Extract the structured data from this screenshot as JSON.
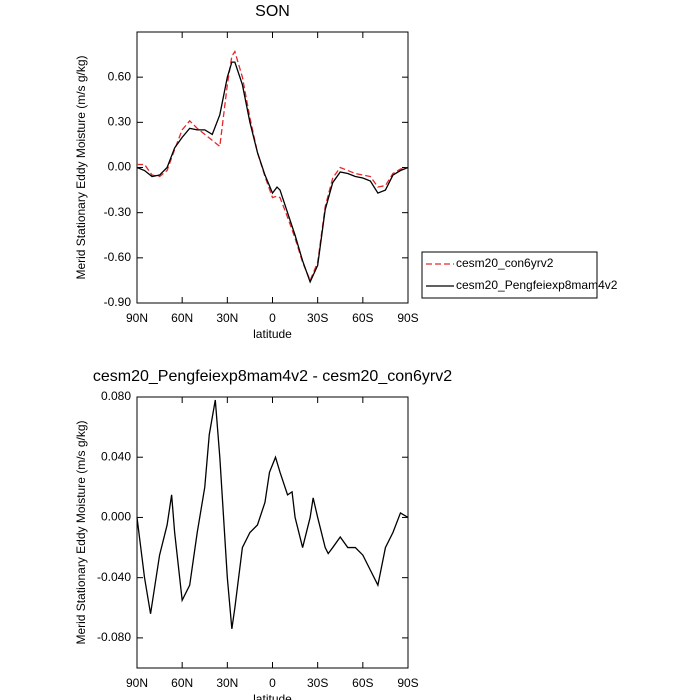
{
  "chart_data": [
    {
      "type": "line",
      "title": "SON",
      "x_label": "latitude",
      "y_label": "Merid Stationary Eddy Moisture (m/s g/kg)",
      "x": [
        90,
        85,
        80,
        75,
        70,
        65,
        60,
        55,
        50,
        45,
        40,
        35,
        30,
        27,
        25,
        20,
        15,
        10,
        5,
        0,
        -3,
        -5,
        -10,
        -15,
        -20,
        -25,
        -30,
        -35,
        -40,
        -45,
        -50,
        -55,
        -60,
        -65,
        -70,
        -75,
        -80,
        -85,
        -90
      ],
      "series": [
        {
          "name": "cesm20_con6yrv2",
          "color": "#e8262b",
          "line_style": "dashed",
          "values": [
            0.02,
            0.02,
            -0.05,
            -0.06,
            -0.02,
            0.12,
            0.25,
            0.31,
            0.26,
            0.22,
            0.18,
            0.14,
            0.55,
            0.74,
            0.77,
            0.6,
            0.33,
            0.1,
            -0.06,
            -0.2,
            -0.19,
            -0.2,
            -0.33,
            -0.47,
            -0.63,
            -0.75,
            -0.63,
            -0.26,
            -0.07,
            0.0,
            -0.02,
            -0.04,
            -0.05,
            -0.06,
            -0.13,
            -0.12,
            -0.04,
            -0.01,
            0.0
          ]
        },
        {
          "name": "cesm20_Pengfeiexp8mam4v2",
          "color": "#000000",
          "line_style": "solid",
          "values": [
            0.0,
            -0.02,
            -0.06,
            -0.05,
            0.0,
            0.13,
            0.2,
            0.26,
            0.25,
            0.25,
            0.22,
            0.35,
            0.6,
            0.7,
            0.7,
            0.55,
            0.3,
            0.1,
            -0.05,
            -0.17,
            -0.13,
            -0.15,
            -0.3,
            -0.45,
            -0.62,
            -0.76,
            -0.65,
            -0.28,
            -0.1,
            -0.03,
            -0.04,
            -0.06,
            -0.07,
            -0.09,
            -0.17,
            -0.15,
            -0.05,
            -0.02,
            0.0
          ]
        }
      ],
      "xlim": [
        90,
        -90
      ],
      "xticks": [
        {
          "value": 90,
          "label": "90N"
        },
        {
          "value": 60,
          "label": "60N"
        },
        {
          "value": 30,
          "label": "30N"
        },
        0,
        {
          "value": -30,
          "label": "30S"
        },
        {
          "value": -60,
          "label": "60S"
        },
        {
          "value": -90,
          "label": "90S"
        }
      ],
      "ylim": [
        -0.9,
        0.9
      ],
      "yticks": [
        {
          "value": -0.9,
          "label": "-0.90"
        },
        {
          "value": -0.6,
          "label": "-0.60"
        },
        {
          "value": -0.3,
          "label": "-0.30"
        },
        {
          "value": 0,
          "label": "0.00"
        },
        {
          "value": 0.3,
          "label": "0.30"
        },
        {
          "value": 0.6,
          "label": "0.60"
        }
      ],
      "legend": "outside-right"
    },
    {
      "type": "line",
      "title": "cesm20_Pengfeiexp8mam4v2 - cesm20_con6yrv2",
      "x_label": "latitude",
      "y_label": "Merid Stationary Eddy Moisture (m/s g/kg)",
      "x": [
        90,
        85,
        81,
        75,
        70,
        67,
        65,
        60,
        55,
        50,
        45,
        42,
        38,
        35,
        30,
        27,
        25,
        20,
        15,
        10,
        5,
        2,
        0,
        -2,
        -5,
        -10,
        -13,
        -15,
        -20,
        -25,
        -27,
        -30,
        -35,
        -37,
        -40,
        -45,
        -50,
        -55,
        -60,
        -65,
        -70,
        -75,
        -80,
        -85,
        -90
      ],
      "series": [
        {
          "color": "#000000",
          "line_style": "solid",
          "values": [
            0.0,
            -0.04,
            -0.064,
            -0.025,
            -0.005,
            0.015,
            -0.01,
            -0.055,
            -0.045,
            -0.01,
            0.02,
            0.055,
            0.078,
            0.04,
            -0.04,
            -0.074,
            -0.06,
            -0.02,
            -0.01,
            -0.005,
            0.01,
            0.03,
            0.035,
            0.04,
            0.03,
            0.015,
            0.017,
            0.0,
            -0.02,
            0.0,
            0.013,
            0.0,
            -0.02,
            -0.024,
            -0.02,
            -0.013,
            -0.02,
            -0.02,
            -0.025,
            -0.035,
            -0.045,
            -0.02,
            -0.01,
            0.003,
            0.0
          ]
        }
      ],
      "xlim": [
        90,
        -90
      ],
      "xticks": [
        {
          "value": 90,
          "label": "90N"
        },
        {
          "value": 60,
          "label": "60N"
        },
        {
          "value": 30,
          "label": "30N"
        },
        0,
        {
          "value": -30,
          "label": "30S"
        },
        {
          "value": -60,
          "label": "60S"
        },
        {
          "value": -90,
          "label": "90S"
        }
      ],
      "ylim": [
        -0.1,
        0.08
      ],
      "yticks": [
        {
          "value": -0.08,
          "label": "-0.080"
        },
        {
          "value": -0.04,
          "label": "-0.040"
        },
        {
          "value": 0,
          "label": "0.000"
        },
        {
          "value": 0.04,
          "label": "0.040"
        },
        {
          "value": 0.08,
          "label": "0.080"
        }
      ]
    }
  ]
}
